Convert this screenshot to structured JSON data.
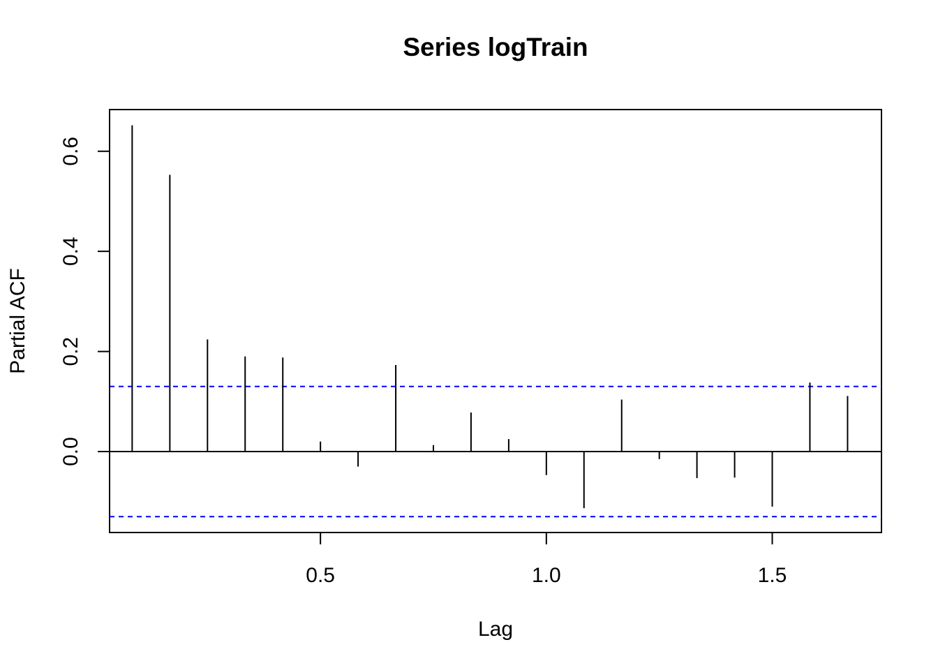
{
  "chart_data": {
    "type": "bar",
    "title": "Series  logTrain",
    "xlabel": "Lag",
    "ylabel": "Partial ACF",
    "xlim": [
      0.0333,
      1.7417
    ],
    "ylim": [
      -0.1617,
      0.6833
    ],
    "x_ticks": [
      0.5,
      1.0,
      1.5
    ],
    "x_tick_labels": [
      "0.5",
      "1.0",
      "1.5"
    ],
    "y_ticks": [
      0.0,
      0.2,
      0.4,
      0.6
    ],
    "y_tick_labels": [
      "0.0",
      "0.2",
      "0.4",
      "0.6"
    ],
    "grid": false,
    "zero_line": 0,
    "confidence_bound": 0.13,
    "colors": {
      "bars": "#000000",
      "confidence_lines": "#0000ff",
      "axes": "#000000"
    },
    "series": [
      {
        "x": [
          0.0833,
          0.1667,
          0.25,
          0.3333,
          0.4167,
          0.5,
          0.5833,
          0.6667,
          0.75,
          0.8333,
          0.9167,
          1.0,
          1.0833,
          1.1667,
          1.25,
          1.3333,
          1.4167,
          1.5,
          1.5833,
          1.6667
        ],
        "values": [
          0.652,
          0.553,
          0.224,
          0.19,
          0.188,
          0.02,
          -0.03,
          0.173,
          0.013,
          0.078,
          0.025,
          -0.047,
          -0.113,
          0.104,
          -0.015,
          -0.053,
          -0.052,
          -0.11,
          0.138,
          0.111
        ]
      }
    ]
  }
}
